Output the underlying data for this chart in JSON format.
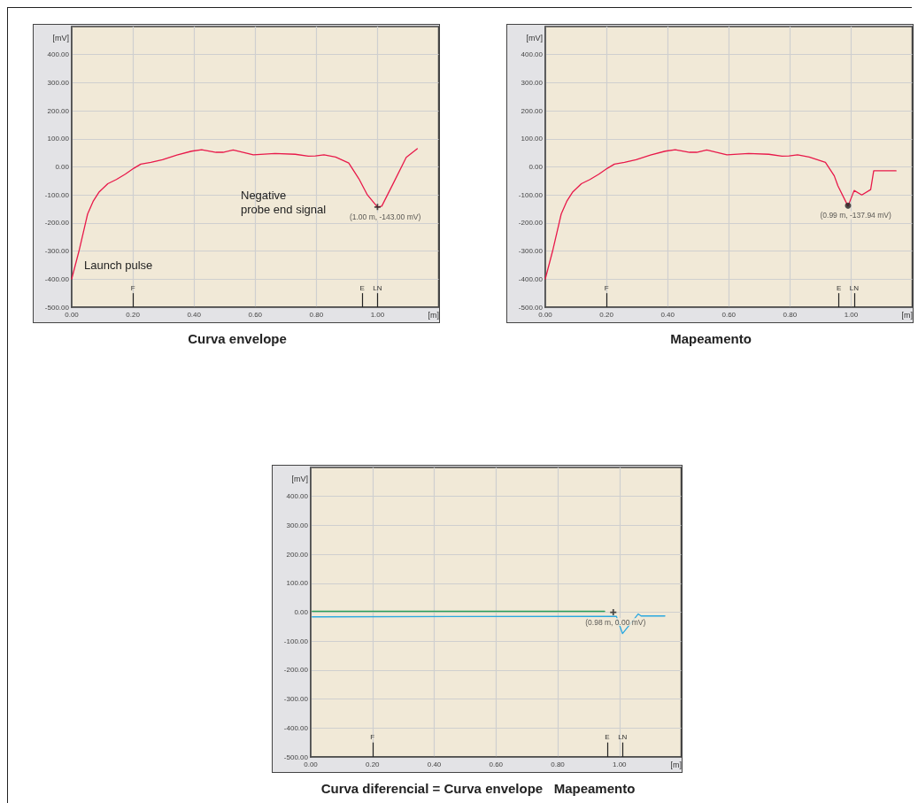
{
  "chart_data": [
    {
      "type": "line",
      "title": "Curva envelope",
      "xlabel": "[m]",
      "ylabel": "[mV]",
      "xlim": [
        0,
        1.2
      ],
      "ylim": [
        -500,
        500
      ],
      "xticks": [
        {
          "value": 0,
          "label": "0.00"
        },
        {
          "value": 0.2,
          "label": "0.20"
        },
        {
          "value": 0.4,
          "label": "0.40"
        },
        {
          "value": 0.6,
          "label": "0.60"
        },
        {
          "value": 0.8,
          "label": "0.80"
        },
        {
          "value": 1,
          "label": "1.00"
        }
      ],
      "yticks": [
        {
          "value": -500,
          "label": "-500.00"
        },
        {
          "value": -400,
          "label": "-400.00"
        },
        {
          "value": -300,
          "label": "-300.00"
        },
        {
          "value": -200,
          "label": "-200.00"
        },
        {
          "value": -100,
          "label": "-100.00"
        },
        {
          "value": 0,
          "label": "0.00"
        },
        {
          "value": 100,
          "label": "100.00"
        },
        {
          "value": 200,
          "label": "200.00"
        },
        {
          "value": 300,
          "label": "300.00"
        },
        {
          "value": 400,
          "label": "400.00"
        }
      ],
      "grid": true,
      "marker": "none",
      "line_style": "solid",
      "series": [
        {
          "type": "line",
          "color": "#e8194a",
          "x": [
            0,
            0.024,
            0.052,
            0.071,
            0.09,
            0.118,
            0.146,
            0.175,
            0.203,
            0.226,
            0.259,
            0.297,
            0.344,
            0.392,
            0.425,
            0.472,
            0.495,
            0.528,
            0.561,
            0.594,
            0.665,
            0.731,
            0.774,
            0.797,
            0.825,
            0.863,
            0.906,
            0.939,
            0.967,
            1.0,
            1.014,
            1.052,
            1.094,
            1.13
          ],
          "values": [
            -399,
            -299,
            -168,
            -121,
            -89,
            -60,
            -45,
            -26,
            -5,
            10,
            16,
            26,
            42,
            56,
            61,
            52,
            52,
            60,
            52,
            43,
            48,
            45,
            38,
            39,
            43,
            35,
            14,
            -42,
            -100,
            -143,
            -140,
            -58,
            34,
            65
          ]
        },
        {
          "type": "scatter",
          "marker": "cross",
          "color": "#222222",
          "x": [
            1.0
          ],
          "values": [
            -143
          ],
          "value_labels": [
            "(1.00 m, -143.00 mV)"
          ]
        }
      ],
      "ref_lines": [
        {
          "axis": "x",
          "value": 0.2,
          "label": "F"
        },
        {
          "axis": "x",
          "value": 0.95,
          "label": "E"
        },
        {
          "axis": "x",
          "value": 1.0,
          "label": "LN"
        }
      ],
      "annotations": [
        "Launch pulse",
        "Negative\nprobe end signal"
      ]
    },
    {
      "type": "line",
      "title": "Mapeamento",
      "xlabel": "[m]",
      "ylabel": "[mV]",
      "xlim": [
        0,
        1.2
      ],
      "ylim": [
        -500,
        500
      ],
      "xticks": [
        {
          "value": 0,
          "label": "0.00"
        },
        {
          "value": 0.2,
          "label": "0.20"
        },
        {
          "value": 0.4,
          "label": "0.40"
        },
        {
          "value": 0.6,
          "label": "0.60"
        },
        {
          "value": 0.8,
          "label": "0.80"
        },
        {
          "value": 1,
          "label": "1.00"
        }
      ],
      "yticks": [
        {
          "value": -500,
          "label": "-500.00"
        },
        {
          "value": -400,
          "label": "-400.00"
        },
        {
          "value": -300,
          "label": "-300.00"
        },
        {
          "value": -200,
          "label": "-200.00"
        },
        {
          "value": -100,
          "label": "-100.00"
        },
        {
          "value": 0,
          "label": "0.00"
        },
        {
          "value": 100,
          "label": "100.00"
        },
        {
          "value": 200,
          "label": "200.00"
        },
        {
          "value": 300,
          "label": "300.00"
        },
        {
          "value": 400,
          "label": "400.00"
        }
      ],
      "grid": true,
      "marker": "none",
      "line_style": "solid",
      "series": [
        {
          "type": "line",
          "color": "#e8194a",
          "x": [
            0,
            0.024,
            0.052,
            0.071,
            0.09,
            0.118,
            0.146,
            0.175,
            0.203,
            0.226,
            0.259,
            0.297,
            0.344,
            0.392,
            0.425,
            0.472,
            0.495,
            0.528,
            0.561,
            0.594,
            0.665,
            0.731,
            0.774,
            0.797,
            0.825,
            0.863,
            0.916,
            0.945,
            0.957,
            0.99,
            1.01,
            1.035,
            1.064,
            1.074,
            1.147
          ],
          "values": [
            -399,
            -299,
            -168,
            -121,
            -89,
            -60,
            -45,
            -26,
            -5,
            10,
            16,
            26,
            42,
            56,
            61,
            52,
            52,
            60,
            52,
            43,
            48,
            45,
            38,
            39,
            43,
            35,
            16,
            -32,
            -68,
            -140,
            -84,
            -100,
            -81,
            -14,
            -14
          ]
        },
        {
          "type": "scatter",
          "marker": "circle",
          "color": "#222222",
          "x": [
            0.99
          ],
          "values": [
            -137.94
          ],
          "value_labels": [
            "(0.99 m, -137.94 mV)"
          ]
        }
      ],
      "ref_lines": [
        {
          "axis": "x",
          "value": 0.2,
          "label": "F"
        },
        {
          "axis": "x",
          "value": 0.96,
          "label": "E"
        },
        {
          "axis": "x",
          "value": 1.01,
          "label": "LN"
        }
      ]
    },
    {
      "type": "line",
      "title": "Curva diferencial = Curva envelope   Mapeamento",
      "xlabel": "[m]",
      "ylabel": "[mV]",
      "xlim": [
        0,
        1.2
      ],
      "ylim": [
        -500,
        500
      ],
      "xticks": [
        {
          "value": 0,
          "label": "0.00"
        },
        {
          "value": 0.2,
          "label": "0.20"
        },
        {
          "value": 0.4,
          "label": "0.40"
        },
        {
          "value": 0.6,
          "label": "0.60"
        },
        {
          "value": 0.8,
          "label": "0.80"
        },
        {
          "value": 1,
          "label": "1.00"
        }
      ],
      "yticks": [
        {
          "value": -500,
          "label": "-500.00"
        },
        {
          "value": -400,
          "label": "-400.00"
        },
        {
          "value": -300,
          "label": "-300.00"
        },
        {
          "value": -200,
          "label": "-200.00"
        },
        {
          "value": -100,
          "label": "-100.00"
        },
        {
          "value": 0,
          "label": "0.00"
        },
        {
          "value": 100,
          "label": "100.00"
        },
        {
          "value": 200,
          "label": "200.00"
        },
        {
          "value": 300,
          "label": "300.00"
        },
        {
          "value": 400,
          "label": "400.00"
        }
      ],
      "grid": true,
      "marker": "none",
      "line_style": "solid",
      "series": [
        {
          "type": "line",
          "color": "#2ca05a",
          "x": [
            0.005,
            0.952
          ],
          "values": [
            3,
            3
          ]
        },
        {
          "type": "line",
          "color": "#29a8e0",
          "x": [
            0.005,
            0.99,
            1.01,
            1.061,
            1.07,
            1.147
          ],
          "values": [
            -16,
            -14,
            -74,
            -6,
            -13,
            -13
          ]
        },
        {
          "type": "scatter",
          "marker": "cross",
          "color": "#222222",
          "x": [
            0.98
          ],
          "values": [
            0
          ],
          "value_labels": [
            "(0.98 m, 0.00 mV)"
          ]
        }
      ],
      "ref_lines": [
        {
          "axis": "x",
          "value": 0.2,
          "label": "F"
        },
        {
          "axis": "x",
          "value": 0.96,
          "label": "E"
        },
        {
          "axis": "x",
          "value": 1.01,
          "label": "LN"
        }
      ]
    }
  ]
}
